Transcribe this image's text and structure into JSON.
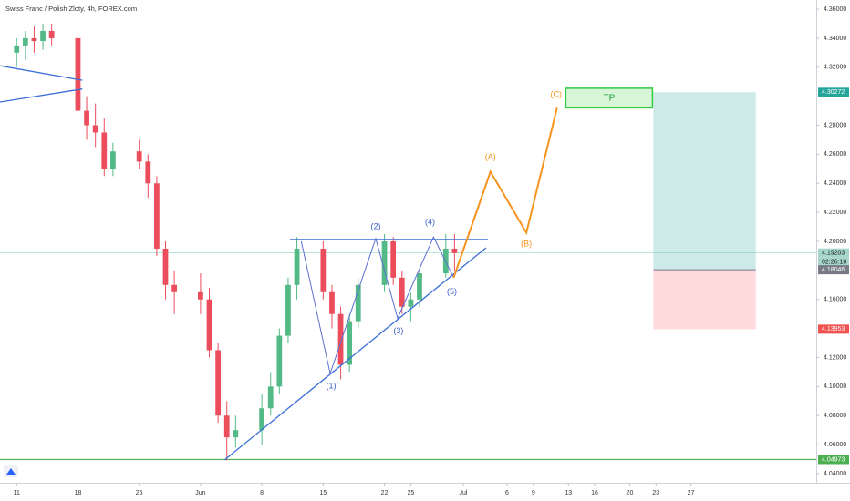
{
  "chart_data": {
    "type": "candlestick",
    "title": "Swiss Franc / Polish Zloty, 4h, FOREX.com",
    "x": [
      0,
      1,
      2,
      3,
      4,
      7,
      8,
      9,
      10,
      11,
      14,
      15,
      16,
      17,
      18,
      21,
      22,
      23,
      24,
      25,
      28,
      29,
      30,
      31,
      32,
      35,
      36,
      37,
      38,
      39,
      42,
      43,
      44,
      45,
      46,
      49,
      50
    ],
    "open": [
      4.33,
      4.335,
      4.34,
      4.338,
      4.345,
      4.34,
      4.29,
      4.28,
      4.275,
      4.25,
      4.262,
      4.255,
      4.24,
      4.195,
      4.17,
      4.165,
      4.16,
      4.125,
      4.08,
      4.065,
      4.07,
      4.085,
      4.1,
      4.135,
      4.17,
      4.195,
      4.165,
      4.15,
      4.115,
      4.145,
      4.17,
      4.2,
      4.175,
      4.155,
      4.16,
      4.178,
      4.195
    ],
    "high": [
      4.34,
      4.345,
      4.348,
      4.35,
      4.35,
      4.345,
      4.3,
      4.295,
      4.285,
      4.268,
      4.27,
      4.26,
      4.245,
      4.2,
      4.18,
      4.178,
      4.168,
      4.13,
      4.09,
      4.08,
      4.095,
      4.11,
      4.14,
      4.175,
      4.203,
      4.2,
      4.17,
      4.155,
      4.15,
      4.175,
      4.205,
      4.203,
      4.18,
      4.165,
      4.18,
      4.205,
      4.205
    ],
    "low": [
      4.32,
      4.325,
      4.33,
      4.332,
      4.335,
      4.28,
      4.27,
      4.265,
      4.245,
      4.245,
      4.25,
      4.23,
      4.19,
      4.16,
      4.15,
      4.15,
      4.12,
      4.075,
      4.049,
      4.058,
      4.06,
      4.08,
      4.095,
      4.13,
      4.16,
      4.16,
      4.14,
      4.105,
      4.11,
      4.14,
      4.165,
      4.17,
      4.15,
      4.145,
      4.155,
      4.175,
      4.18
    ],
    "close": [
      4.335,
      4.34,
      4.338,
      4.345,
      4.34,
      4.29,
      4.28,
      4.275,
      4.25,
      4.262,
      4.255,
      4.24,
      4.195,
      4.17,
      4.165,
      4.16,
      4.125,
      4.08,
      4.065,
      4.07,
      4.085,
      4.1,
      4.135,
      4.17,
      4.195,
      4.165,
      4.15,
      4.115,
      4.145,
      4.17,
      4.2,
      4.175,
      4.155,
      4.16,
      4.178,
      4.195,
      4.192
    ],
    "up_color": "#53b987",
    "down_color": "#eb4d5c",
    "xlim": [
      -1.9,
      91.3
    ],
    "xticks": [
      {
        "value": 0,
        "label": "11"
      },
      {
        "value": 7,
        "label": "18"
      },
      {
        "value": 14,
        "label": "25"
      },
      {
        "value": 21,
        "label": "Jun"
      },
      {
        "value": 28,
        "label": "8"
      },
      {
        "value": 35,
        "label": "15"
      },
      {
        "value": 42,
        "label": "22"
      },
      {
        "value": 45,
        "label": "25"
      },
      {
        "value": 51,
        "label": "Jul"
      },
      {
        "value": 56,
        "label": "6"
      },
      {
        "value": 59,
        "label": "9"
      },
      {
        "value": 63,
        "label": "13"
      },
      {
        "value": 66,
        "label": "16"
      },
      {
        "value": 70,
        "label": "20"
      },
      {
        "value": 73,
        "label": "23"
      },
      {
        "value": 77,
        "label": "27"
      }
    ],
    "ylim": [
      4.0337,
      4.3663
    ],
    "yticks": [
      {
        "value": 4.04,
        "label": "4.04000"
      },
      {
        "value": 4.06,
        "label": "4.06000"
      },
      {
        "value": 4.08,
        "label": "4.08000"
      },
      {
        "value": 4.1,
        "label": "4.10000"
      },
      {
        "value": 4.12,
        "label": "4.12000"
      },
      {
        "value": 4.16,
        "label": "4.16000"
      },
      {
        "value": 4.2,
        "label": "4.20000"
      },
      {
        "value": 4.22,
        "label": "4.22000"
      },
      {
        "value": 4.24,
        "label": "4.24000"
      },
      {
        "value": 4.26,
        "label": "4.26000"
      },
      {
        "value": 4.28,
        "label": "4.28000"
      },
      {
        "value": 4.32,
        "label": "4.32000"
      },
      {
        "value": 4.34,
        "label": "4.34000"
      },
      {
        "value": 4.36,
        "label": "4.36000"
      }
    ],
    "levels": [
      {
        "value": 4.19203,
        "color": "#a5d6c9",
        "text_color": "#131722",
        "line_color": "#8fd3c1"
      },
      {
        "value": 4.04973,
        "color": "#4caf50",
        "text_color": "#ffffff",
        "line_color": "#4caf50"
      }
    ],
    "countdown": "02:26:18",
    "position": {
      "x": [
        72.7,
        84.4
      ],
      "target": 4.30272,
      "entry": 4.18046,
      "stop": 4.13953,
      "target_color": "#26a69a",
      "entry_color": "#787b86",
      "stop_color": "#ef5350"
    },
    "lines": [
      {
        "color": "#3a6fd8",
        "x": [
          -1.9,
          7.5
        ],
        "y": [
          4.321,
          4.311
        ]
      },
      {
        "color": "#3a6fd8",
        "x": [
          -1.9,
          7.5
        ],
        "y": [
          4.296,
          4.305
        ]
      },
      {
        "color": "#3a6fd8",
        "x": [
          31.2,
          53.8
        ],
        "y": [
          4.2013,
          4.2013
        ]
      },
      {
        "color": "#3a6fd8",
        "x": [
          23.75,
          53.6
        ],
        "y": [
          4.0495,
          4.1956
        ]
      }
    ],
    "waves": [
      {
        "color": "#5b6fd0",
        "x": [
          32.5,
          35.8,
          41,
          43.5,
          47.6,
          49.9
        ],
        "y": [
          4.2,
          4.109,
          4.202,
          4.147,
          4.203,
          4.175
        ]
      },
      {
        "color": "#f7931e",
        "x": [
          49.9,
          54.1,
          58.2,
          61.7
        ],
        "y": [
          4.175,
          4.248,
          4.206,
          4.292
        ]
      }
    ],
    "wave_labels": [
      {
        "text": "(1)",
        "x": 35.9,
        "y": 4.1,
        "color": "#3a5bc8"
      },
      {
        "text": "(2)",
        "x": 41,
        "y": 4.21,
        "color": "#3a5bc8"
      },
      {
        "text": "(3)",
        "x": 43.6,
        "y": 4.138,
        "color": "#3a5bc8"
      },
      {
        "text": "(4)",
        "x": 47.2,
        "y": 4.213,
        "color": "#3a5bc8"
      },
      {
        "text": "(5)",
        "x": 49.7,
        "y": 4.165,
        "color": "#3a5bc8"
      },
      {
        "text": "(A)",
        "x": 54.1,
        "y": 4.258,
        "color": "#f7931e"
      },
      {
        "text": "(B)",
        "x": 58.2,
        "y": 4.198,
        "color": "#f7931e"
      },
      {
        "text": "(C)",
        "x": 61.6,
        "y": 4.301,
        "color": "#f7931e"
      }
    ],
    "tp": {
      "text": "TP",
      "x": [
        62.7,
        72.6
      ],
      "y": [
        4.3055,
        4.292
      ],
      "color": "#1e9e3a"
    }
  }
}
